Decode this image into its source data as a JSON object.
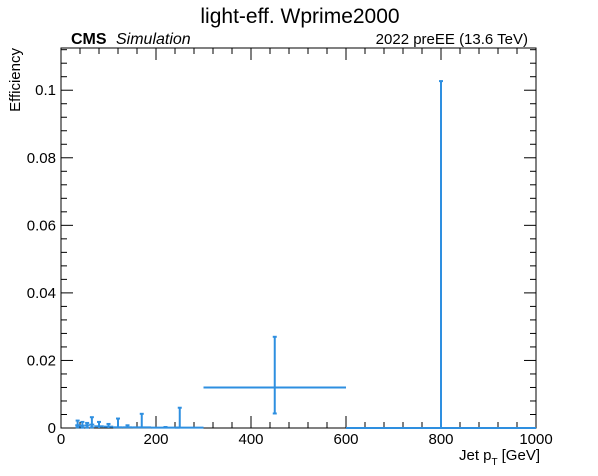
{
  "chart_data": {
    "type": "scatter",
    "title": "light-eff. Wprime2000",
    "cms_label": "CMS",
    "cms_sublabel": "Simulation",
    "lumi_label": "2022 preEE (13.6 TeV)",
    "xlabel_main": "Jet p",
    "xlabel_sub": "T",
    "xlabel_unit": "[GeV]",
    "ylabel": "Efficiency",
    "xlim": [
      0,
      1000
    ],
    "ylim": [
      0,
      0.1125
    ],
    "x_ticks": [
      0,
      200,
      400,
      600,
      800,
      1000
    ],
    "x_tick_labels": [
      "0",
      "200",
      "400",
      "600",
      "800",
      "1000"
    ],
    "y_ticks": [
      0,
      0.02,
      0.04,
      0.06,
      0.08,
      0.1
    ],
    "y_tick_labels": [
      "0",
      "0.02",
      "0.04",
      "0.06",
      "0.08",
      "0.1"
    ],
    "grid": false,
    "series_color": "#2e8fe0",
    "points": [
      {
        "x": 35,
        "xlo": 30,
        "xhi": 40,
        "y": 0.0008,
        "ylo": 0.0002,
        "yhi": 0.0022
      },
      {
        "x": 45,
        "xlo": 40,
        "xhi": 50,
        "y": 0.0007,
        "ylo": 0.0001,
        "yhi": 0.0018
      },
      {
        "x": 55,
        "xlo": 50,
        "xhi": 60,
        "y": 0.0008,
        "ylo": 0.0001,
        "yhi": 0.0015
      },
      {
        "x": 65,
        "xlo": 60,
        "xhi": 70,
        "y": 0.001,
        "ylo": 0.0002,
        "yhi": 0.0032
      },
      {
        "x": 80,
        "xlo": 70,
        "xhi": 90,
        "y": 0.0005,
        "ylo": 0.0,
        "yhi": 0.0018
      },
      {
        "x": 100,
        "xlo": 90,
        "xhi": 110,
        "y": 0.0004,
        "ylo": 0.0,
        "yhi": 0.0012
      },
      {
        "x": 120,
        "xlo": 110,
        "xhi": 130,
        "y": 0.0002,
        "ylo": 0.0,
        "yhi": 0.0028
      },
      {
        "x": 140,
        "xlo": 130,
        "xhi": 150,
        "y": 0.0002,
        "ylo": 0.0,
        "yhi": 0.0008
      },
      {
        "x": 170,
        "xlo": 150,
        "xhi": 190,
        "y": 0.0002,
        "ylo": 0.0,
        "yhi": 0.0042
      },
      {
        "x": 220,
        "xlo": 190,
        "xhi": 250,
        "y": 0.0001,
        "ylo": 0.0,
        "yhi": 0.0003
      },
      {
        "x": 250,
        "xlo": 240,
        "xhi": 300,
        "y": 0.0001,
        "ylo": 0.0,
        "yhi": 0.006
      },
      {
        "x": 450,
        "xlo": 300,
        "xhi": 600,
        "y": 0.012,
        "ylo": 0.0043,
        "yhi": 0.027
      },
      {
        "x": 800,
        "xlo": 600,
        "xhi": 1000,
        "y": 0.0,
        "ylo": 0.0,
        "yhi": 0.1027
      }
    ]
  }
}
